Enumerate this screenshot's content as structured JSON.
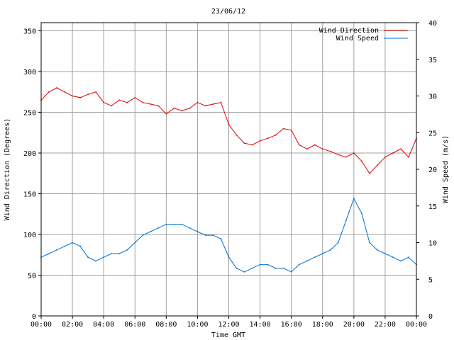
{
  "chart_data": {
    "type": "line",
    "title": "23/06/12",
    "xlabel": "Time GMT",
    "ylabel_left": "Wind Direction (Degrees)",
    "ylabel_right": "Wind Speed (m/s)",
    "x_ticks": [
      "00:00",
      "02:00",
      "04:00",
      "06:00",
      "08:00",
      "10:00",
      "12:00",
      "14:00",
      "16:00",
      "18:00",
      "20:00",
      "22:00",
      "00:00"
    ],
    "x_range_hours": [
      0,
      24
    ],
    "y_left": {
      "range": [
        0,
        360
      ],
      "ticks": [
        0,
        50,
        100,
        150,
        200,
        250,
        300,
        350
      ]
    },
    "y_right": {
      "range": [
        0,
        40
      ],
      "ticks": [
        0,
        5,
        10,
        15,
        20,
        25,
        30,
        35,
        40
      ]
    },
    "grid": true,
    "legend_position": "top-right",
    "series": [
      {
        "name": "Wind Direction",
        "axis": "left",
        "color": "#e00000",
        "x": [
          0,
          0.5,
          1,
          1.5,
          2,
          2.5,
          3,
          3.5,
          4,
          4.5,
          5,
          5.5,
          6,
          6.5,
          7,
          7.5,
          8,
          8.5,
          9,
          9.5,
          10,
          10.5,
          11,
          11.5,
          12,
          12.5,
          13,
          13.5,
          14,
          14.5,
          15,
          15.5,
          16,
          16.5,
          17,
          17.5,
          18,
          18.5,
          19,
          19.5,
          20,
          20.5,
          21,
          21.5,
          22,
          22.5,
          23,
          23.5,
          24
        ],
        "values": [
          265,
          275,
          280,
          275,
          270,
          268,
          272,
          275,
          262,
          258,
          265,
          262,
          268,
          262,
          260,
          258,
          248,
          255,
          252,
          255,
          262,
          258,
          260,
          262,
          235,
          222,
          212,
          210,
          215,
          218,
          222,
          230,
          228,
          210,
          205,
          210,
          205,
          202,
          198,
          195,
          200,
          190,
          175,
          185,
          195,
          200,
          205,
          195,
          218
        ]
      },
      {
        "name": "Wind Speed",
        "axis": "right",
        "color": "#0070d0",
        "x": [
          0,
          0.5,
          1,
          1.5,
          2,
          2.5,
          3,
          3.5,
          4,
          4.5,
          5,
          5.5,
          6,
          6.5,
          7,
          7.5,
          8,
          8.5,
          9,
          9.5,
          10,
          10.5,
          11,
          11.5,
          12,
          12.5,
          13,
          13.5,
          14,
          14.5,
          15,
          15.5,
          16,
          16.5,
          17,
          17.5,
          18,
          18.5,
          19,
          19.5,
          20,
          20.5,
          21,
          21.5,
          22,
          22.5,
          23,
          23.5,
          24
        ],
        "values": [
          8,
          8.5,
          9,
          9.5,
          10,
          9.5,
          8,
          7.5,
          8,
          8.5,
          8.5,
          9,
          10,
          11,
          11.5,
          12,
          12.5,
          12.5,
          12.5,
          12,
          11.5,
          11,
          11,
          10.5,
          8,
          6.5,
          6,
          6.5,
          7,
          7,
          6.5,
          6.5,
          6,
          7,
          7.5,
          8,
          8.5,
          9,
          10,
          13,
          16,
          14,
          10,
          9,
          8.5,
          8,
          7.5,
          8,
          7
        ]
      }
    ]
  }
}
